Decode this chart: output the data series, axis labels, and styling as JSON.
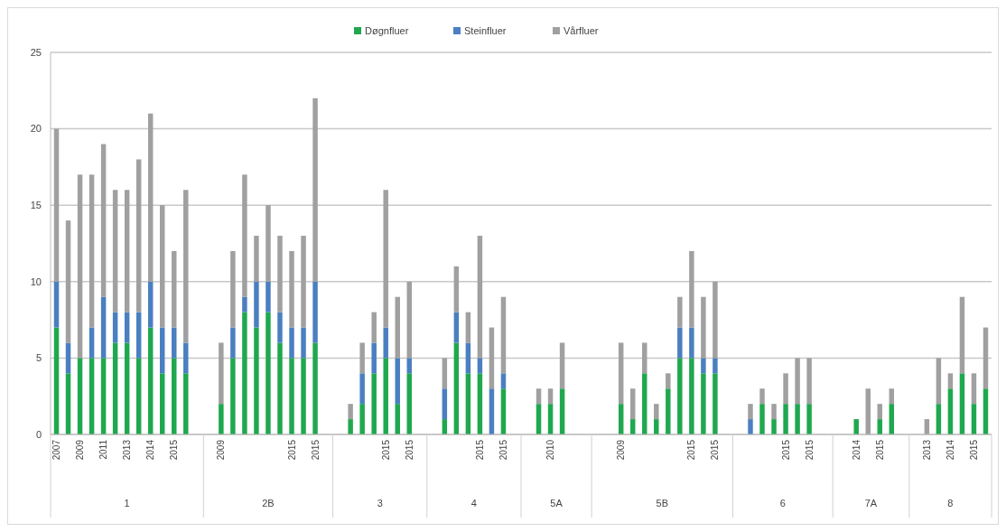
{
  "chart_data": {
    "type": "bar",
    "stacked": true,
    "grid": "y",
    "legend": "top",
    "ylim": [
      0,
      25
    ],
    "yticks": [
      0,
      5,
      10,
      15,
      20,
      25
    ],
    "categories": [
      "2007",
      null,
      "2009",
      null,
      "2011",
      null,
      "2013",
      null,
      "2014",
      null,
      "2015",
      null,
      null,
      null,
      "2009",
      null,
      null,
      null,
      null,
      null,
      "2015",
      null,
      "2015",
      null,
      null,
      null,
      null,
      null,
      "2015",
      null,
      "2015",
      null,
      null,
      null,
      null,
      null,
      "2015",
      null,
      "2015",
      null,
      null,
      null,
      "2010",
      null,
      null,
      null,
      null,
      null,
      "2009",
      null,
      null,
      null,
      null,
      null,
      "2015",
      null,
      "2015",
      null,
      null,
      null,
      null,
      null,
      "2015",
      null,
      "2015",
      null,
      null,
      null,
      "2014",
      null,
      "2015",
      null,
      null,
      null,
      "2013",
      null,
      "2014",
      null,
      "2015",
      null
    ],
    "series": [
      {
        "name": "Døgnfluer",
        "color": "#1fa84f",
        "values": [
          7,
          4,
          5,
          5,
          5,
          6,
          6,
          5,
          7,
          4,
          5,
          4,
          null,
          null,
          2,
          5,
          8,
          7,
          8,
          6,
          5,
          5,
          6,
          null,
          null,
          1,
          2,
          4,
          5,
          2,
          4,
          null,
          null,
          1,
          6,
          4,
          4,
          0,
          3,
          null,
          null,
          2,
          2,
          3,
          null,
          null,
          null,
          null,
          2,
          1,
          4,
          1,
          3,
          5,
          5,
          4,
          4,
          null,
          null,
          0,
          2,
          1,
          2,
          2,
          2,
          null,
          null,
          null,
          1,
          0,
          1,
          2,
          null,
          null,
          0,
          2,
          3,
          4,
          2,
          3
        ]
      },
      {
        "name": "Steinfluer",
        "color": "#4a7fc1",
        "values": [
          3,
          2,
          0,
          2,
          4,
          2,
          2,
          3,
          3,
          3,
          2,
          2,
          null,
          null,
          0,
          2,
          1,
          3,
          2,
          2,
          2,
          2,
          4,
          null,
          null,
          0,
          2,
          2,
          2,
          3,
          1,
          null,
          null,
          2,
          2,
          2,
          1,
          3,
          1,
          null,
          null,
          0,
          0,
          0,
          null,
          null,
          null,
          null,
          0,
          0,
          0,
          0,
          0,
          2,
          2,
          1,
          1,
          null,
          null,
          1,
          0,
          0,
          0,
          0,
          0,
          null,
          null,
          null,
          0,
          0,
          0,
          0,
          null,
          null,
          0,
          0,
          0,
          0,
          0,
          0
        ]
      },
      {
        "name": "Vårfluer",
        "color": "#a0a0a0",
        "values": [
          10,
          8,
          12,
          10,
          10,
          8,
          8,
          10,
          11,
          8,
          5,
          10,
          null,
          null,
          4,
          5,
          8,
          3,
          5,
          5,
          5,
          6,
          12,
          null,
          null,
          1,
          2,
          2,
          9,
          4,
          5,
          null,
          null,
          2,
          3,
          2,
          8,
          4,
          5,
          null,
          null,
          1,
          1,
          3,
          null,
          null,
          null,
          null,
          4,
          2,
          2,
          1,
          1,
          2,
          5,
          4,
          5,
          null,
          null,
          1,
          1,
          1,
          2,
          3,
          3,
          null,
          null,
          null,
          0,
          3,
          1,
          1,
          null,
          null,
          1,
          3,
          1,
          5,
          2,
          4
        ]
      }
    ],
    "annotations": [
      "1",
      "2B",
      "3",
      "4",
      "5A",
      "5B",
      "6",
      "7A",
      "8"
    ]
  }
}
